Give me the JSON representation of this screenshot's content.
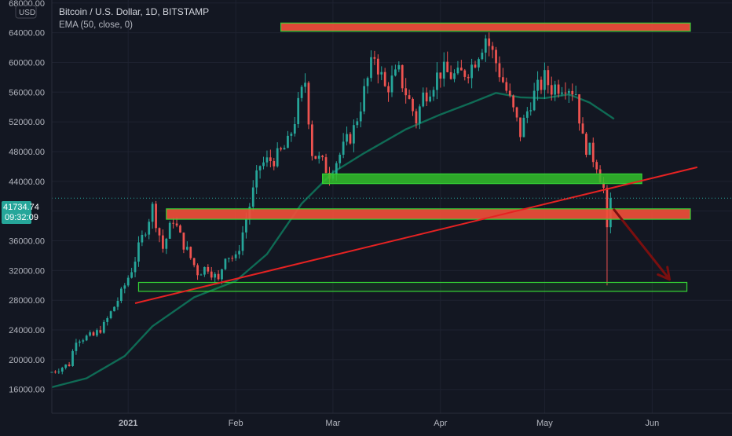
{
  "header": {
    "currency": "USD",
    "title": "Bitcoin / U.S. Dollar, 1D, BITSTAMP",
    "indicator": "EMA (50, close, 0)"
  },
  "price_badge": {
    "price": "41734.74",
    "countdown": "09:32:09"
  },
  "colors": {
    "background": "#131722",
    "grid": "#1e2230",
    "up_candle": "#26a69a",
    "down_candle": "#ef5350",
    "ema": "#0f6b55",
    "trendline": "#e52222",
    "resistance_fill": "#ef4e3a",
    "support_fill": "#33c12a",
    "zone_border": "#35d435",
    "projection_arrow": "#7a0f0f",
    "badge": "#26a69a"
  },
  "chart_data": {
    "type": "candlestick",
    "title": "Bitcoin / U.S. Dollar, 1D, BITSTAMP",
    "x_tick_labels": [
      "2021",
      "Feb",
      "Mar",
      "Apr",
      "May",
      "Jun"
    ],
    "x_tick_dates": [
      "2021-01-01",
      "2021-02-01",
      "2021-03-01",
      "2021-04-01",
      "2021-05-01",
      "2021-06-01"
    ],
    "x_range": [
      "2020-12-10",
      "2021-06-24"
    ],
    "ylim": [
      12800,
      68400
    ],
    "y_tick_labels": [
      "16000.00",
      "20000.00",
      "24000.00",
      "28000.00",
      "32000.00",
      "36000.00",
      "40000.00",
      "44000.00",
      "48000.00",
      "52000.00",
      "56000.00",
      "60000.00",
      "64000.00",
      "68000.00"
    ],
    "y_ticks": [
      16000,
      20000,
      24000,
      28000,
      32000,
      36000,
      40000,
      44000,
      48000,
      52000,
      56000,
      60000,
      64000,
      68000
    ],
    "last_price": 41734.74,
    "grid": true,
    "close_anchors": [
      [
        "2020-12-10",
        18400
      ],
      [
        "2020-12-15",
        19400
      ],
      [
        "2020-12-17",
        22800
      ],
      [
        "2020-12-22",
        23200
      ],
      [
        "2020-12-25",
        24600
      ],
      [
        "2020-12-30",
        28900
      ],
      [
        "2021-01-02",
        32200
      ],
      [
        "2021-01-08",
        40500
      ],
      [
        "2021-01-11",
        35000
      ],
      [
        "2021-01-14",
        39000
      ],
      [
        "2021-01-16",
        36500
      ],
      [
        "2021-01-21",
        31800
      ],
      [
        "2021-01-24",
        32500
      ],
      [
        "2021-01-27",
        30500
      ],
      [
        "2021-01-29",
        34300
      ],
      [
        "2021-02-01",
        33500
      ],
      [
        "2021-02-08",
        46200
      ],
      [
        "2021-02-13",
        47300
      ],
      [
        "2021-02-16",
        49000
      ],
      [
        "2021-02-21",
        57500
      ],
      [
        "2021-02-23",
        48000
      ],
      [
        "2021-02-28",
        45200
      ],
      [
        "2021-03-04",
        48400
      ],
      [
        "2021-03-07",
        51000
      ],
      [
        "2021-03-10",
        56000
      ],
      [
        "2021-03-13",
        61000
      ],
      [
        "2021-03-16",
        56500
      ],
      [
        "2021-03-20",
        58500
      ],
      [
        "2021-03-25",
        52300
      ],
      [
        "2021-03-27",
        55500
      ],
      [
        "2021-04-01",
        58800
      ],
      [
        "2021-04-06",
        58000
      ],
      [
        "2021-04-10",
        59600
      ],
      [
        "2021-04-14",
        63500
      ],
      [
        "2021-04-17",
        60000
      ],
      [
        "2021-04-20",
        56200
      ],
      [
        "2021-04-24",
        50500
      ],
      [
        "2021-04-27",
        54900
      ],
      [
        "2021-05-01",
        57800
      ],
      [
        "2021-05-03",
        56600
      ],
      [
        "2021-05-07",
        57300
      ],
      [
        "2021-05-10",
        56000
      ],
      [
        "2021-05-12",
        49500
      ],
      [
        "2021-05-16",
        46500
      ],
      [
        "2021-05-18",
        43000
      ],
      [
        "2021-05-19",
        37000
      ],
      [
        "2021-05-20",
        41734.74
      ]
    ],
    "series": [
      {
        "name": "EMA (50, close, 0)",
        "type": "line",
        "points": [
          [
            "2020-12-10",
            16300
          ],
          [
            "2020-12-20",
            17500
          ],
          [
            "2020-12-31",
            20500
          ],
          [
            "2021-01-08",
            24500
          ],
          [
            "2021-01-20",
            28400
          ],
          [
            "2021-02-01",
            30600
          ],
          [
            "2021-02-10",
            34200
          ],
          [
            "2021-02-20",
            41000
          ],
          [
            "2021-03-01",
            45200
          ],
          [
            "2021-03-10",
            47800
          ],
          [
            "2021-03-22",
            51000
          ],
          [
            "2021-04-01",
            53000
          ],
          [
            "2021-04-10",
            54600
          ],
          [
            "2021-04-17",
            55900
          ],
          [
            "2021-04-24",
            55300
          ],
          [
            "2021-05-01",
            55200
          ],
          [
            "2021-05-08",
            55700
          ],
          [
            "2021-05-14",
            54600
          ],
          [
            "2021-05-21",
            52400
          ]
        ]
      },
      {
        "name": "Trend line",
        "type": "line",
        "points": [
          [
            "2021-01-03",
            27600
          ],
          [
            "2021-06-14",
            45900
          ]
        ]
      }
    ],
    "zones": [
      {
        "kind": "resistance",
        "from": "2021-02-14",
        "to": "2021-06-12",
        "low": 64200,
        "high": 65300
      },
      {
        "kind": "support",
        "from": "2021-02-26",
        "to": "2021-05-29",
        "low": 43700,
        "high": 45000
      },
      {
        "kind": "resistance",
        "from": "2021-01-12",
        "to": "2021-06-12",
        "low": 38900,
        "high": 40300
      },
      {
        "kind": "support",
        "from": "2021-01-04",
        "to": "2021-06-11",
        "low": 29200,
        "high": 30400
      }
    ],
    "projection": {
      "from": [
        "2021-05-21",
        40200
      ],
      "to": [
        "2021-06-06",
        30800
      ]
    }
  }
}
